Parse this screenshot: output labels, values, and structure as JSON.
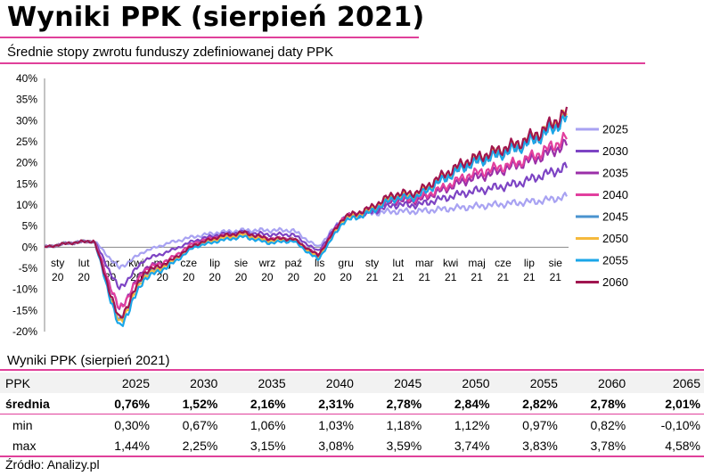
{
  "header": {
    "title": "Wyniki PPK (sierpień 2021)",
    "subtitle": "Średnie stopy zwrotu funduszy zdefiniowanej daty PPK"
  },
  "chart_data": {
    "type": "line",
    "ylim": [
      -20,
      40
    ],
    "yticks": [
      "40%",
      "35%",
      "30%",
      "25%",
      "20%",
      "15%",
      "10%",
      "5%",
      "0%",
      "-5%",
      "-10%",
      "-15%",
      "-20%"
    ],
    "ytick_values": [
      40,
      35,
      30,
      25,
      20,
      15,
      10,
      5,
      0,
      -5,
      -10,
      -15,
      -20
    ],
    "xticks": [
      {
        "m": "sty",
        "y": "20"
      },
      {
        "m": "lut",
        "y": "20"
      },
      {
        "m": "mar",
        "y": "20"
      },
      {
        "m": "kwi",
        "y": "20"
      },
      {
        "m": "maj",
        "y": "20"
      },
      {
        "m": "cze",
        "y": "20"
      },
      {
        "m": "lip",
        "y": "20"
      },
      {
        "m": "sie",
        "y": "20"
      },
      {
        "m": "wrz",
        "y": "20"
      },
      {
        "m": "paź",
        "y": "20"
      },
      {
        "m": "lis",
        "y": "20"
      },
      {
        "m": "gru",
        "y": "20"
      },
      {
        "m": "sty",
        "y": "21"
      },
      {
        "m": "lut",
        "y": "21"
      },
      {
        "m": "mar",
        "y": "21"
      },
      {
        "m": "kwi",
        "y": "21"
      },
      {
        "m": "maj",
        "y": "21"
      },
      {
        "m": "cze",
        "y": "21"
      },
      {
        "m": "lip",
        "y": "21"
      },
      {
        "m": "sie",
        "y": "21"
      }
    ],
    "x": [
      "2020-01",
      "2020-02",
      "2020-03a",
      "2020-03b",
      "2020-04",
      "2020-05",
      "2020-06",
      "2020-07",
      "2020-08",
      "2020-09",
      "2020-10",
      "2020-10b",
      "2020-11",
      "2020-12",
      "2021-01",
      "2021-02",
      "2021-03",
      "2021-04",
      "2021-05",
      "2021-06",
      "2021-07",
      "2021-08"
    ],
    "series": [
      {
        "name": "2025",
        "color": "#a8a2f2",
        "values": [
          0,
          1,
          1.5,
          -5,
          -1,
          1,
          2.5,
          3.5,
          4,
          4,
          4,
          0,
          7,
          8,
          8.5,
          8.5,
          9,
          9.5,
          10,
          10.5,
          11,
          12
        ]
      },
      {
        "name": "2030",
        "color": "#7d44c4",
        "values": [
          0,
          1,
          1.5,
          -10,
          -3,
          -1,
          1.5,
          3,
          3.5,
          3,
          3,
          -1,
          7,
          8,
          10,
          10,
          11.5,
          13,
          14,
          15,
          17,
          19
        ]
      },
      {
        "name": "2035",
        "color": "#9b2fa8",
        "values": [
          0,
          1,
          1.5,
          -15,
          -5,
          -3,
          1,
          2.5,
          3,
          2,
          2,
          -2,
          7,
          8.5,
          11,
          11,
          13.5,
          16,
          17.5,
          19.5,
          21.5,
          24.5
        ]
      },
      {
        "name": "2040",
        "color": "#e23f9e",
        "values": [
          0,
          1,
          1.5,
          -15,
          -5.5,
          -3,
          1,
          2.5,
          3,
          2,
          2,
          -2,
          7,
          8.5,
          11.5,
          11.5,
          14,
          17,
          18.5,
          20,
          22.5,
          26
        ]
      },
      {
        "name": "2045",
        "color": "#4a93cf",
        "values": [
          0,
          1,
          1.5,
          -18,
          -6.5,
          -4,
          0.5,
          2,
          3,
          1.5,
          2,
          -2.5,
          6.5,
          8.5,
          12,
          12.5,
          16,
          19.5,
          21.5,
          23.5,
          26.5,
          31
        ]
      },
      {
        "name": "2050",
        "color": "#f5b93c",
        "values": [
          0,
          1,
          1.5,
          -18.5,
          -7,
          -4,
          0.5,
          2,
          3,
          1.5,
          2,
          -2.5,
          6.5,
          8.5,
          12,
          12.5,
          16.5,
          20,
          22,
          24,
          27,
          31.5
        ]
      },
      {
        "name": "2055",
        "color": "#1aa6e8",
        "values": [
          0,
          1,
          1.5,
          -19.5,
          -7.5,
          -4.5,
          0,
          1.5,
          2.5,
          1,
          1.5,
          -3,
          6,
          8,
          11.5,
          12,
          16,
          19.5,
          21.5,
          23.5,
          26.5,
          30.5
        ]
      },
      {
        "name": "2060",
        "color": "#a0154f",
        "values": [
          0,
          1,
          1.5,
          -17.5,
          -6,
          -3.5,
          0.5,
          2.5,
          3.5,
          2,
          2,
          -2,
          7,
          9,
          12.5,
          13,
          17,
          20.5,
          22.5,
          24.5,
          27.5,
          32
        ]
      }
    ]
  },
  "table": {
    "caption": "Wyniki PPK (sierpień  2021)",
    "header": [
      "PPK",
      "2025",
      "2030",
      "2035",
      "2040",
      "2045",
      "2050",
      "2055",
      "2060",
      "2065"
    ],
    "rows": [
      {
        "label": "średnia",
        "values": [
          "0,76%",
          "1,52%",
          "2,16%",
          "2,31%",
          "2,78%",
          "2,84%",
          "2,82%",
          "2,78%",
          "2,01%"
        ]
      },
      {
        "label": "min",
        "values": [
          "0,30%",
          "0,67%",
          "1,06%",
          "1,03%",
          "1,18%",
          "1,12%",
          "0,97%",
          "0,82%",
          "-0,10%"
        ]
      },
      {
        "label": "max",
        "values": [
          "1,44%",
          "2,25%",
          "3,15%",
          "3,08%",
          "3,59%",
          "3,74%",
          "3,83%",
          "3,78%",
          "4,58%"
        ]
      }
    ]
  },
  "footer": {
    "source": "Źródło: Analizy.pl"
  },
  "colors": {
    "accent": "#e0409a"
  }
}
